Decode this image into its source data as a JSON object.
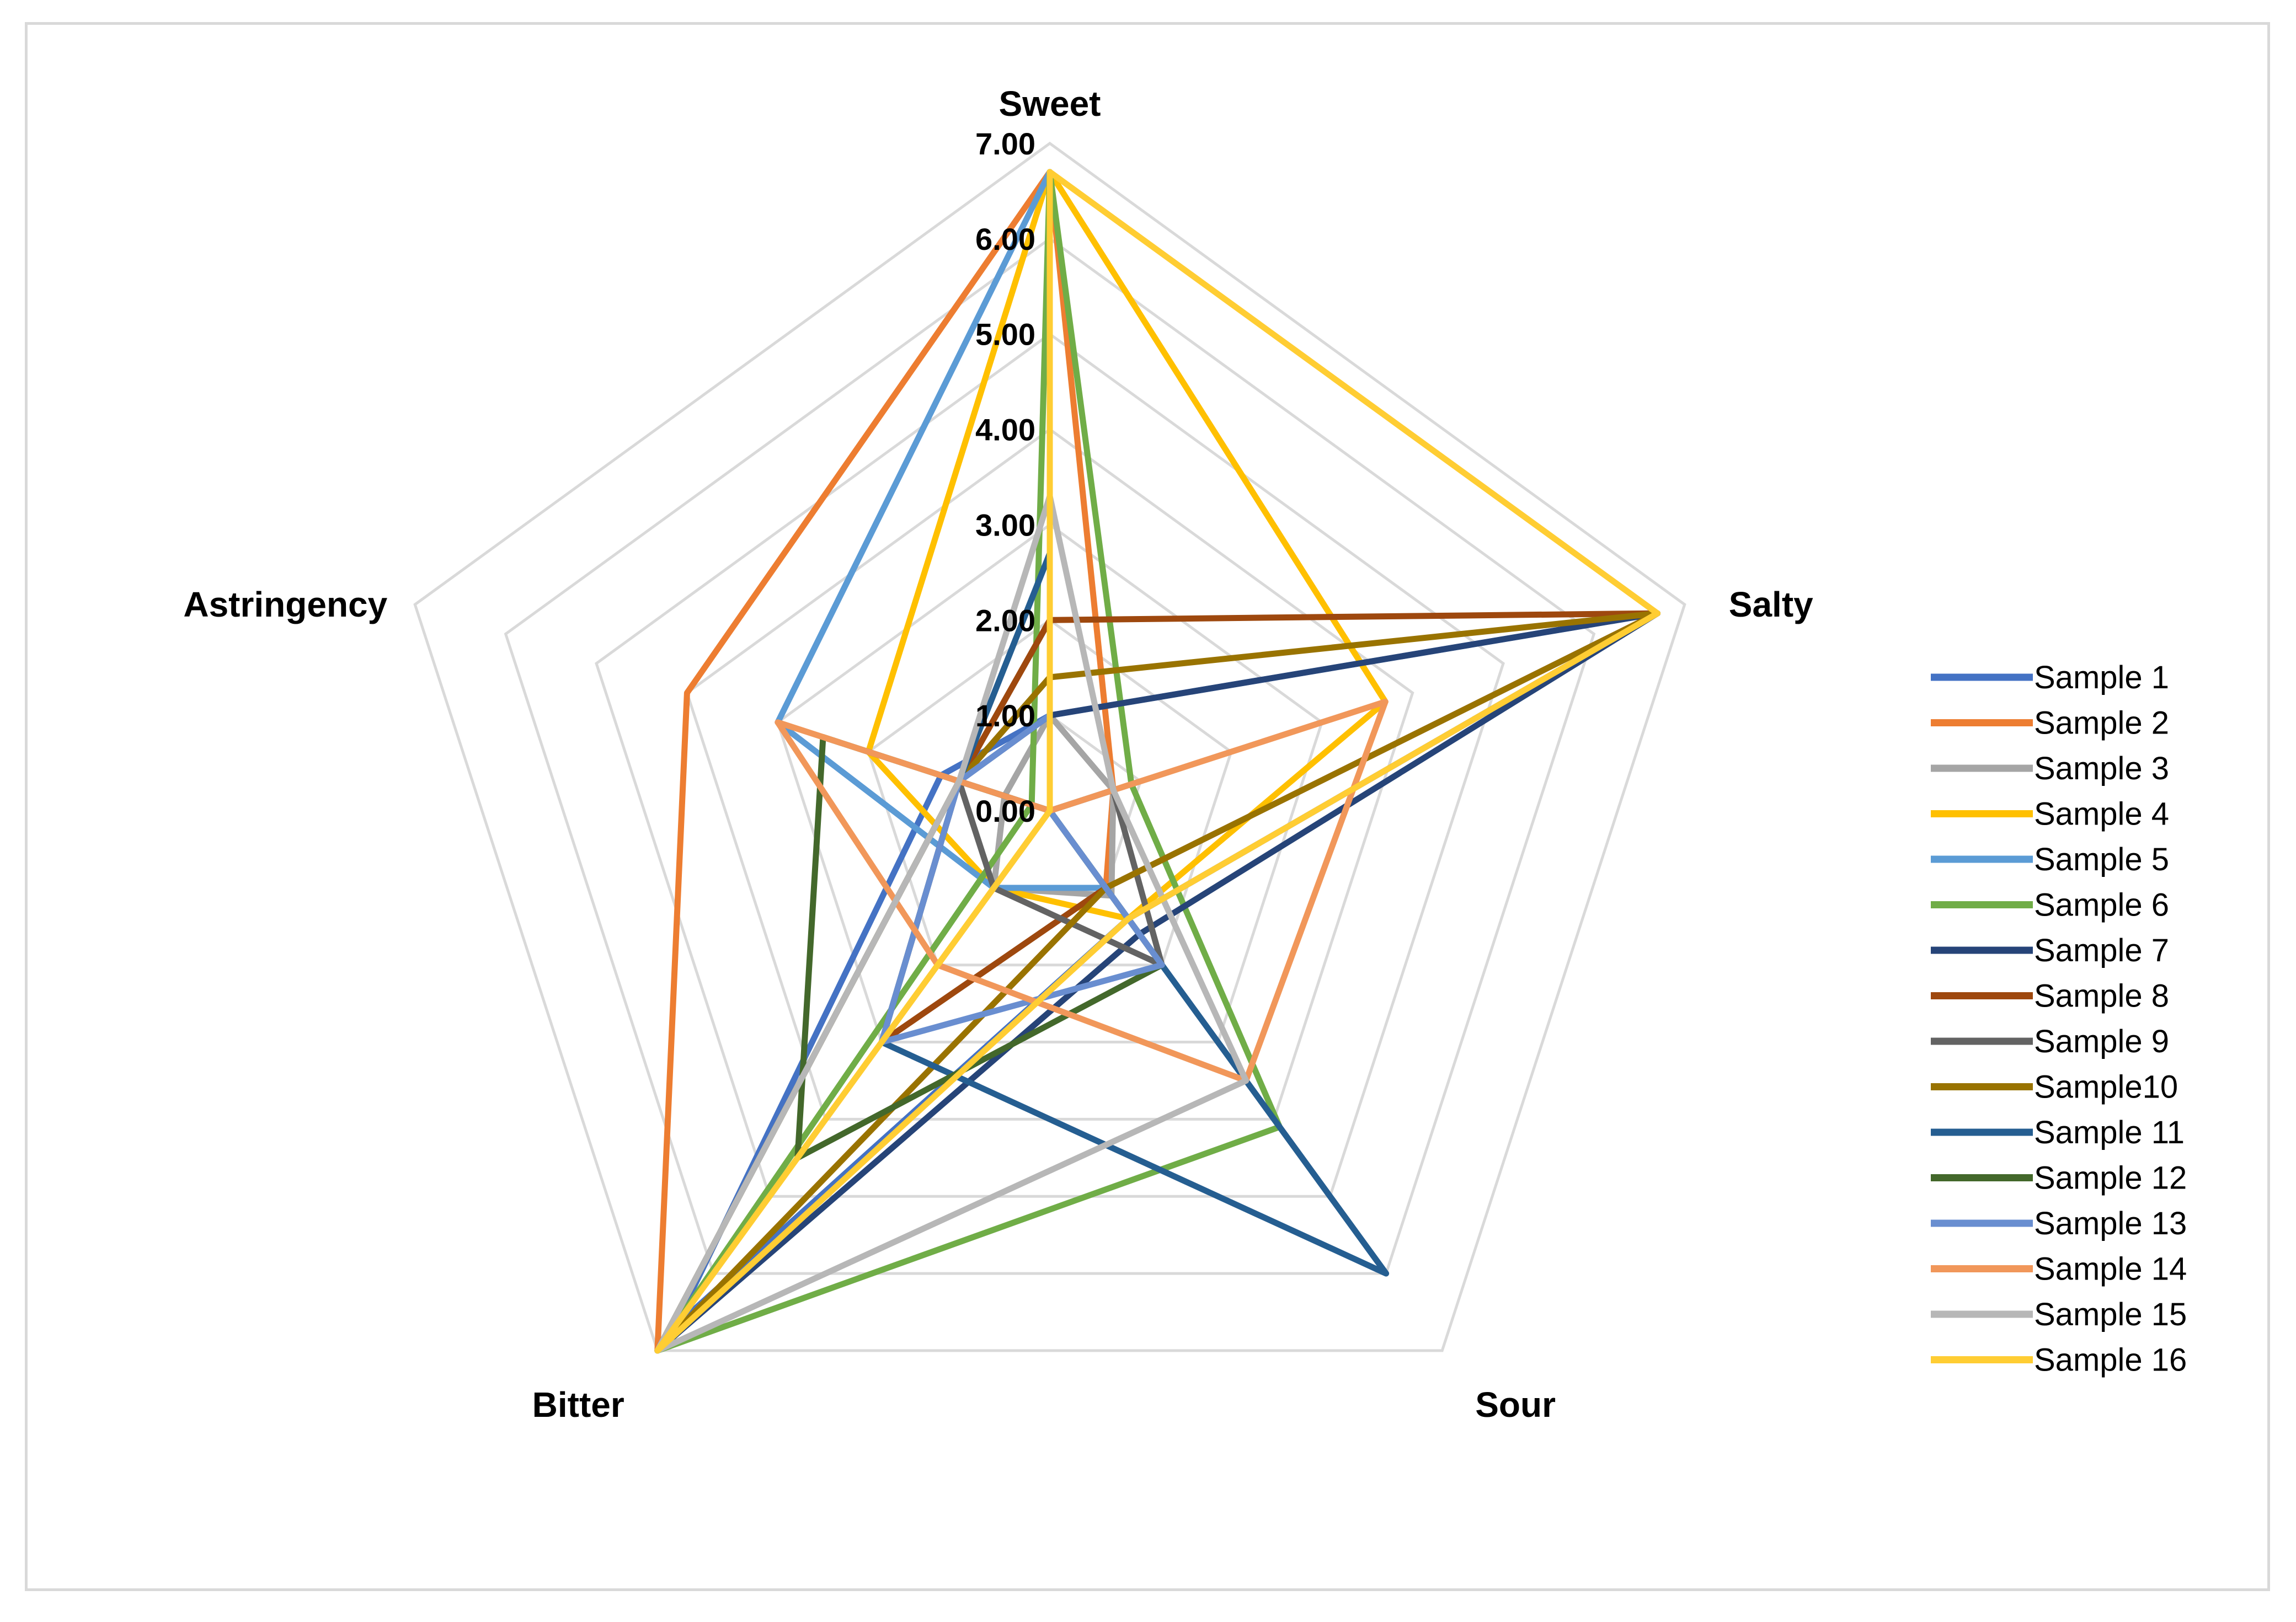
{
  "chart_data": {
    "type": "radar",
    "title": "",
    "axes": [
      "Sweet",
      "Salty",
      "Sour",
      "Bitter",
      "Astringency"
    ],
    "ticks": [
      "0.00",
      "1.00",
      "2.00",
      "3.00",
      "4.00",
      "5.00",
      "6.00",
      "7.00"
    ],
    "range": [
      0,
      7
    ],
    "grid": true,
    "legend_position": "right",
    "series": [
      {
        "name": "Sample 1",
        "color": "#4472c4",
        "values": [
          1.0,
          6.7,
          1.4,
          6.7,
          1.2
        ]
      },
      {
        "name": "Sample 2",
        "color": "#ed7d31",
        "values": [
          6.7,
          0.7,
          1.0,
          7.0,
          4.0
        ]
      },
      {
        "name": "Sample 3",
        "color": "#a5a5a5",
        "values": [
          1.0,
          0.7,
          1.1,
          1.0,
          0.5
        ]
      },
      {
        "name": "Sample 4",
        "color": "#ffc000",
        "values": [
          6.7,
          3.7,
          1.4,
          1.0,
          2.0
        ]
      },
      {
        "name": "Sample 5",
        "color": "#5b9bd5",
        "values": [
          6.7,
          0.0,
          1.0,
          1.0,
          3.0
        ]
      },
      {
        "name": "Sample 6",
        "color": "#70ad47",
        "values": [
          6.7,
          0.9,
          4.1,
          7.0,
          0.2
        ]
      },
      {
        "name": "Sample 7",
        "color": "#264478",
        "values": [
          1.0,
          6.7,
          1.6,
          7.0,
          1.0
        ]
      },
      {
        "name": "Sample 8",
        "color": "#9e480e",
        "values": [
          2.0,
          6.7,
          1.0,
          3.0,
          1.0
        ]
      },
      {
        "name": "Sample 9",
        "color": "#636363",
        "values": [
          0.0,
          0.7,
          2.0,
          1.0,
          1.0
        ]
      },
      {
        "name": "Sample10",
        "color": "#997300",
        "values": [
          1.4,
          6.7,
          1.0,
          7.0,
          1.0
        ]
      },
      {
        "name": "Sample 11",
        "color": "#255e91",
        "values": [
          2.7,
          0.0,
          6.0,
          3.0,
          1.0
        ]
      },
      {
        "name": "Sample 12",
        "color": "#43682b",
        "values": [
          0.0,
          0.0,
          2.0,
          4.5,
          2.5
        ]
      },
      {
        "name": "Sample 13",
        "color": "#698ed0",
        "values": [
          1.0,
          0.0,
          2.0,
          3.0,
          1.0
        ]
      },
      {
        "name": "Sample 14",
        "color": "#f1975a",
        "values": [
          0.0,
          3.7,
          3.5,
          2.0,
          3.0
        ]
      },
      {
        "name": "Sample 15",
        "color": "#b7b7b7",
        "values": [
          3.3,
          0.7,
          3.5,
          7.0,
          1.0
        ]
      },
      {
        "name": "Sample 16",
        "color": "#ffcd33",
        "values": [
          6.7,
          6.7,
          1.4,
          7.0,
          0.0
        ]
      }
    ]
  }
}
